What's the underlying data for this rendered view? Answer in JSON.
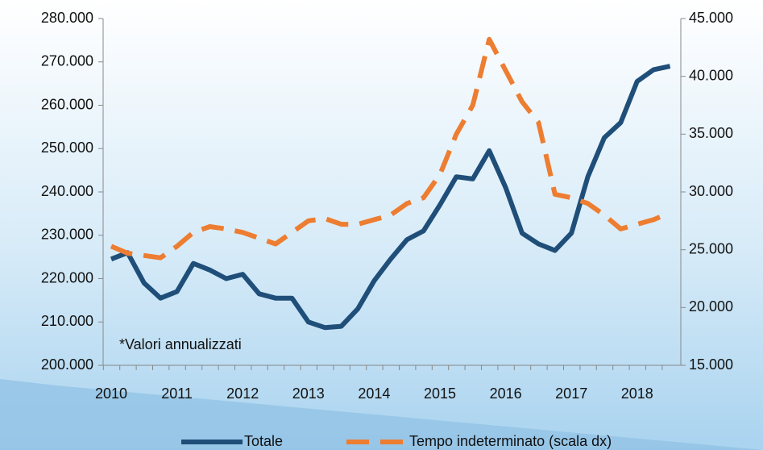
{
  "chart_data": {
    "type": "line",
    "annotation": "*Valori annualizzati",
    "categories": [
      "2010",
      null,
      null,
      null,
      "2011",
      null,
      null,
      null,
      "2012",
      null,
      null,
      null,
      "2013",
      null,
      null,
      null,
      "2014",
      null,
      null,
      null,
      "2015",
      null,
      null,
      null,
      "2016",
      null,
      null,
      null,
      "2017",
      null,
      null,
      null,
      "2018",
      null,
      null
    ],
    "series": [
      {
        "name": "Totale",
        "color": "#1f4e79",
        "axis": "y",
        "values": [
          224500,
          226000,
          219000,
          215500,
          217000,
          223500,
          222000,
          220000,
          221000,
          216500,
          215500,
          215500,
          210000,
          208700,
          209000,
          213000,
          219500,
          224500,
          229000,
          231000,
          237000,
          243500,
          243000,
          249500,
          241000,
          230500,
          228000,
          226500,
          230500,
          243500,
          252500,
          256000,
          265500,
          268200,
          269000
        ]
      },
      {
        "name": "Tempo indeterminato (scala dx)",
        "color": "#ed7d31",
        "axis": "y2",
        "dashed": true,
        "values": [
          25300,
          24700,
          24500,
          24300,
          25300,
          26500,
          27000,
          26800,
          26500,
          26000,
          25500,
          26500,
          27500,
          27700,
          27200,
          27200,
          27600,
          28000,
          29000,
          29500,
          31500,
          35000,
          37500,
          43200,
          40500,
          37800,
          36000,
          29800,
          29500,
          29000,
          28000,
          26800,
          27200,
          27600,
          28200
        ]
      }
    ],
    "ylim": [
      200000,
      280000
    ],
    "yticks": [
      {
        "value": 200000,
        "label": "200.000"
      },
      {
        "value": 210000,
        "label": "210.000"
      },
      {
        "value": 220000,
        "label": "220.000"
      },
      {
        "value": 230000,
        "label": "230.000"
      },
      {
        "value": 240000,
        "label": "240.000"
      },
      {
        "value": 250000,
        "label": "250.000"
      },
      {
        "value": 260000,
        "label": "260.000"
      },
      {
        "value": 270000,
        "label": "270.000"
      },
      {
        "value": 280000,
        "label": "280.000"
      }
    ],
    "y2lim": [
      15000,
      45000
    ],
    "y2ticks": [
      {
        "value": 15000,
        "label": "15.000"
      },
      {
        "value": 20000,
        "label": "20.000"
      },
      {
        "value": 25000,
        "label": "25.000"
      },
      {
        "value": 30000,
        "label": "30.000"
      },
      {
        "value": 35000,
        "label": "35.000"
      },
      {
        "value": 40000,
        "label": "40.000"
      },
      {
        "value": 45000,
        "label": "45.000"
      }
    ],
    "grid": false,
    "legend": "bottom"
  }
}
